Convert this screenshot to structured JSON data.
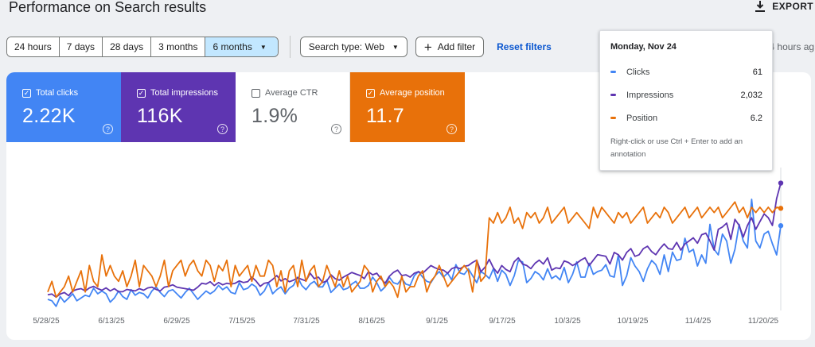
{
  "header": {
    "title": "Performance on Search results",
    "export_label": "EXPORT"
  },
  "toolbar": {
    "ranges": [
      "24 hours",
      "7 days",
      "28 days",
      "3 months",
      "6 months"
    ],
    "selected_range": "6 months",
    "search_type": "Search type: Web",
    "add_filter": "Add filter",
    "reset": "Reset filters",
    "last_update": "Last update: 4 hours ag"
  },
  "metrics": {
    "clicks": {
      "label": "Total clicks",
      "value": "2.22K",
      "checked": true
    },
    "impressions": {
      "label": "Total impressions",
      "value": "116K",
      "checked": true
    },
    "ctr": {
      "label": "Average CTR",
      "value": "1.9%",
      "checked": false
    },
    "position": {
      "label": "Average position",
      "value": "11.7",
      "checked": true
    }
  },
  "tooltip": {
    "date": "Monday, Nov 24",
    "rows": [
      {
        "name": "Clicks",
        "value": "61",
        "color": "#4285f4"
      },
      {
        "name": "Impressions",
        "value": "2,032",
        "color": "#5e35b1"
      },
      {
        "name": "Position",
        "value": "6.2",
        "color": "#e8710a"
      }
    ],
    "hint": "Right-click or use Ctrl + Enter to add an annotation"
  },
  "colors": {
    "clicks": "#4285f4",
    "impressions": "#5e35b1",
    "position": "#e8710a",
    "selected_range_bg": "#c2e7ff"
  },
  "chart_data": {
    "type": "line",
    "x_tick_labels": [
      "5/28/25",
      "6/13/25",
      "6/29/25",
      "7/15/25",
      "7/31/25",
      "8/16/25",
      "9/1/25",
      "9/17/25",
      "10/3/25",
      "10/19/25",
      "11/4/25",
      "11/20/25"
    ],
    "x_range": [
      "5/28/25",
      "11/24/25"
    ],
    "y_axis_labels": "hidden",
    "series": [
      {
        "name": "Clicks",
        "color": "#4285f4",
        "values": [
          8,
          7,
          3,
          10,
          6,
          9,
          12,
          7,
          9,
          11,
          10,
          16,
          12,
          14,
          12,
          6,
          9,
          14,
          10,
          8,
          15,
          11,
          13,
          12,
          9,
          14,
          17,
          13,
          10,
          14,
          15,
          12,
          9,
          13,
          16,
          12,
          8,
          11,
          14,
          12,
          14,
          18,
          15,
          17,
          13,
          12,
          20,
          15,
          16,
          19,
          17,
          11,
          14,
          20,
          12,
          15,
          17,
          12,
          16,
          18,
          24,
          18,
          15,
          19,
          21,
          17,
          17,
          22,
          13,
          16,
          19,
          15,
          16,
          19,
          21,
          16,
          16,
          18,
          24,
          20,
          14,
          17,
          24,
          20,
          19,
          23,
          19,
          18,
          25,
          28,
          24,
          21,
          20,
          25,
          28,
          24,
          27,
          22,
          33,
          27,
          26,
          30,
          25,
          20,
          28,
          26,
          23,
          30,
          21,
          29,
          26,
          18,
          25,
          36,
          35,
          20,
          23,
          28,
          26,
          22,
          30,
          23,
          25,
          22,
          31,
          20,
          26,
          35,
          24,
          24,
          34,
          26,
          28,
          29,
          33,
          25,
          24,
          40,
          18,
          25,
          38,
          32,
          28,
          21,
          30,
          36,
          33,
          26,
          40,
          28,
          42,
          36,
          37,
          52,
          42,
          44,
          32,
          40,
          34,
          62,
          44,
          40,
          55,
          50,
          34,
          44,
          62,
          50,
          45,
          80,
          50,
          45,
          55,
          57,
          48,
          40,
          61
        ]
      },
      {
        "name": "Impressions",
        "color": "#5e35b1",
        "values": [
          10,
          11,
          7,
          11,
          13,
          9,
          15,
          17,
          18,
          15,
          19,
          21,
          18,
          16,
          19,
          15,
          18,
          14,
          14,
          17,
          16,
          15,
          18,
          16,
          19,
          20,
          17,
          15,
          20,
          21,
          23,
          20,
          19,
          18,
          17,
          16,
          20,
          25,
          24,
          27,
          22,
          26,
          23,
          25,
          24,
          25,
          28,
          26,
          27,
          33,
          28,
          21,
          25,
          26,
          30,
          35,
          28,
          31,
          27,
          29,
          32,
          30,
          28,
          38,
          31,
          33,
          26,
          28,
          36,
          31,
          29,
          33,
          36,
          39,
          37,
          35,
          31,
          40,
          36,
          38,
          31,
          25,
          34,
          39,
          42,
          35,
          36,
          33,
          38,
          40,
          38,
          43,
          48,
          45,
          43,
          42,
          38,
          44,
          46,
          44,
          47,
          48,
          52,
          55,
          40,
          46,
          56,
          45,
          38,
          48,
          43,
          40,
          53,
          58,
          50,
          48,
          44,
          51,
          55,
          50,
          58,
          42,
          45,
          44,
          54,
          52,
          48,
          51,
          55,
          58,
          48,
          55,
          62,
          61,
          60,
          50,
          65,
          62,
          55,
          65,
          70,
          60,
          62,
          70,
          73,
          66,
          62,
          70,
          76,
          70,
          69,
          78,
          68,
          76,
          80,
          84,
          77,
          88,
          90,
          80,
          68,
          95,
          98,
          103,
          82,
          108,
          100,
          85,
          100,
          110,
          95,
          105,
          115,
          110,
          100,
          135,
          155
        ]
      },
      {
        "name": "Position",
        "color": "#e8710a",
        "values": [
          22,
          20,
          23,
          22,
          21,
          19,
          22,
          20,
          18,
          22,
          17,
          20,
          21,
          15,
          19,
          17,
          19,
          20,
          18,
          21,
          19,
          16,
          21,
          17,
          18,
          19,
          21,
          19,
          16,
          21,
          18,
          17,
          16,
          19,
          17,
          16,
          18,
          19,
          16,
          17,
          20,
          17,
          18,
          16,
          21,
          17,
          19,
          18,
          17,
          20,
          17,
          19,
          19,
          16,
          17,
          21,
          18,
          22,
          18,
          17,
          21,
          16,
          20,
          18,
          17,
          21,
          20,
          17,
          19,
          21,
          18,
          21,
          19,
          22,
          21,
          20,
          17,
          18,
          22,
          20,
          19,
          21,
          20,
          21,
          23,
          19,
          22,
          21,
          21,
          19,
          18,
          22,
          20,
          19,
          17,
          19,
          21,
          20,
          19,
          18,
          17,
          18,
          22,
          16,
          20,
          19,
          8,
          9,
          7,
          9,
          8,
          6,
          9,
          8,
          10,
          7,
          8,
          7,
          9,
          8,
          6,
          9,
          8,
          7,
          6,
          9,
          8,
          7,
          8,
          9,
          10,
          6,
          8,
          6,
          7,
          8,
          9,
          7,
          8,
          7,
          9,
          8,
          7,
          6,
          9,
          8,
          7,
          8,
          6,
          7,
          9,
          8,
          7,
          6,
          8,
          7,
          6,
          8,
          7,
          6,
          7,
          6,
          8,
          7,
          6,
          5,
          7,
          6,
          8,
          6,
          7,
          6,
          7,
          6,
          7,
          6,
          6.2
        ]
      }
    ],
    "secondary_axis_inverted": true
  }
}
